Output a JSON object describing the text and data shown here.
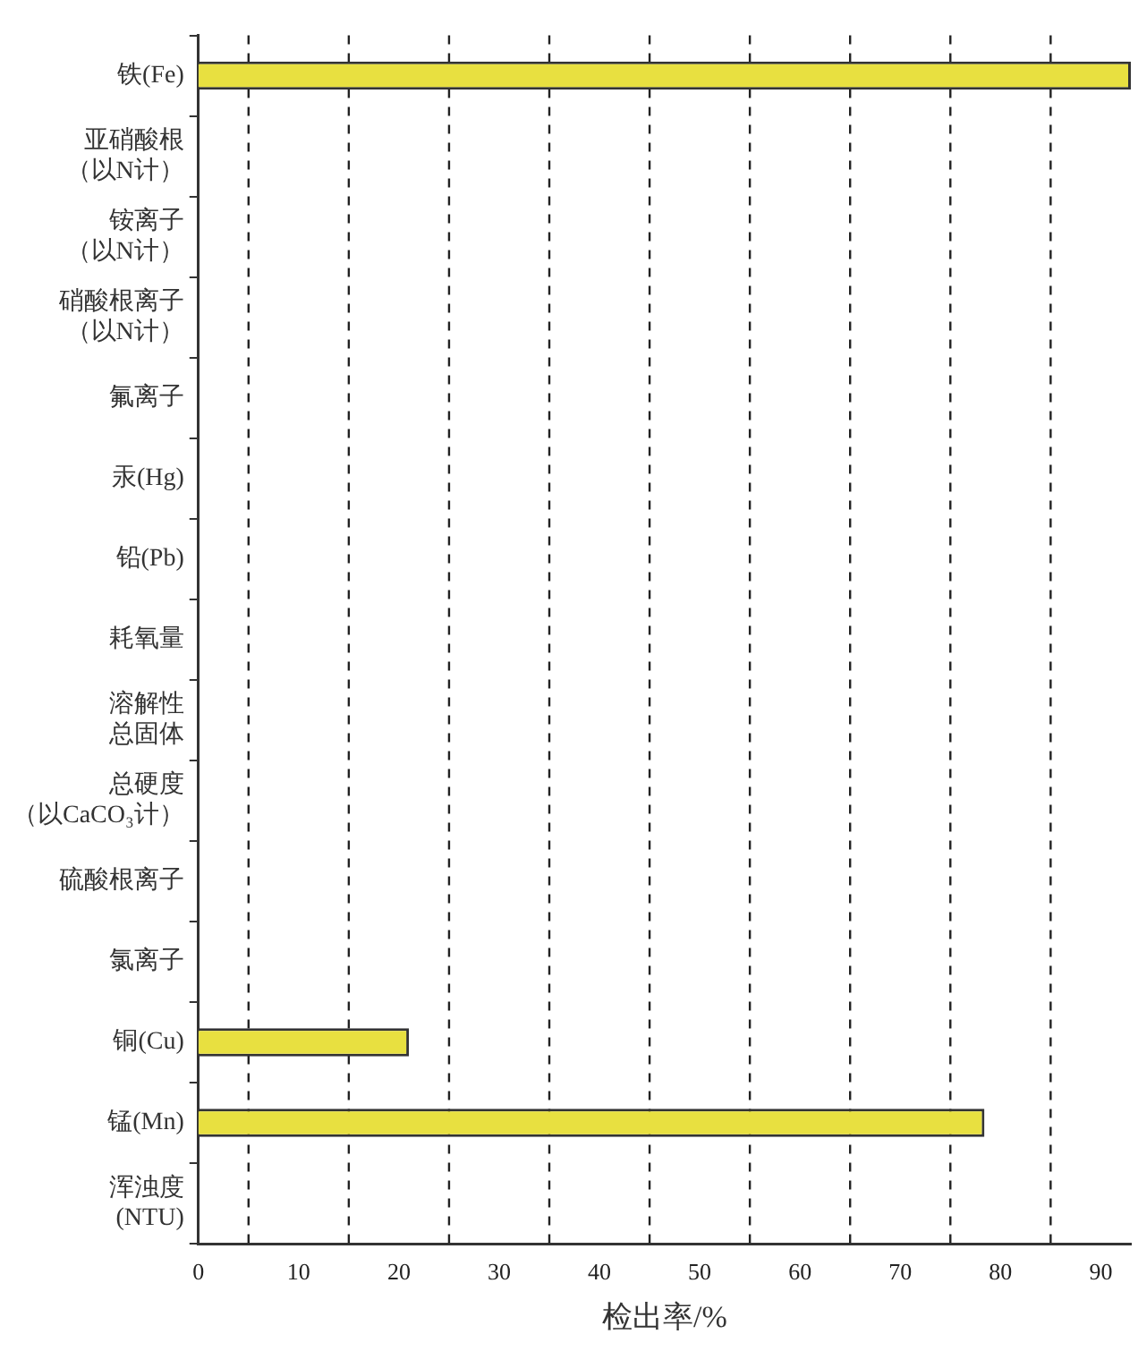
{
  "chart_data": {
    "type": "bar",
    "orientation": "horizontal",
    "xlabel": "检出率/%",
    "categories": [
      "铁(Fe)",
      "亚硝酸根（以N计）",
      "铵离子（以N计）",
      "硝酸根离子（以N计）",
      "氟离子",
      "汞(Hg)",
      "铅(Pb)",
      "耗氧量",
      "溶解性总固体",
      "总硬度（以CaCO₃计）",
      "硫酸根离子",
      "氯离子",
      "铜(Cu)",
      "锰(Mn)",
      "浑浊度(NTU)"
    ],
    "values": [
      93,
      0,
      0,
      0,
      0,
      0,
      0,
      0,
      0,
      0,
      0,
      0,
      21,
      78.4,
      0
    ],
    "color": "#e8e040",
    "xlim": [
      0,
      93
    ],
    "xticks": [
      0,
      10,
      20,
      30,
      40,
      50,
      60,
      70,
      80,
      90
    ],
    "grid": false,
    "legend": false,
    "ref_lines": [
      {
        "axis": "x",
        "value": 5,
        "color": "#222222",
        "line_style": "dashed"
      },
      {
        "axis": "x",
        "value": 15,
        "color": "#222222",
        "line_style": "dashed"
      },
      {
        "axis": "x",
        "value": 25,
        "color": "#222222",
        "line_style": "dashed"
      },
      {
        "axis": "x",
        "value": 35,
        "color": "#222222",
        "line_style": "dashed"
      },
      {
        "axis": "x",
        "value": 45,
        "color": "#222222",
        "line_style": "dashed"
      },
      {
        "axis": "x",
        "value": 55,
        "color": "#222222",
        "line_style": "dashed"
      },
      {
        "axis": "x",
        "value": 65,
        "color": "#222222",
        "line_style": "dashed"
      },
      {
        "axis": "x",
        "value": 75,
        "color": "#222222",
        "line_style": "dashed"
      },
      {
        "axis": "x",
        "value": 85,
        "color": "#222222",
        "line_style": "dashed"
      }
    ]
  }
}
